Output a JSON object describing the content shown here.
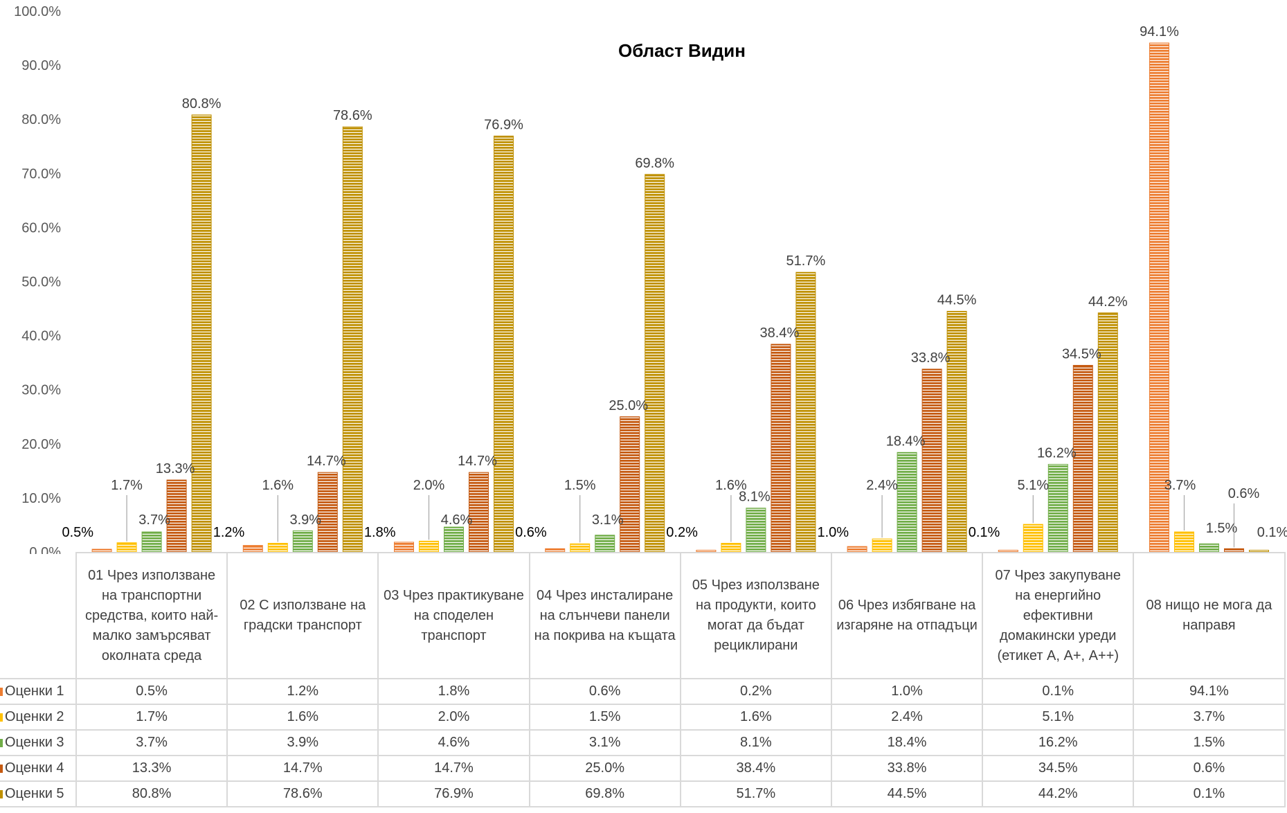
{
  "chart_data": {
    "type": "bar",
    "title": "Област Видин",
    "ylim": [
      0,
      100
    ],
    "y_ticks": [
      "0.0%",
      "10.0%",
      "20.0%",
      "30.0%",
      "40.0%",
      "50.0%",
      "60.0%",
      "70.0%",
      "80.0%",
      "90.0%",
      "100.0%"
    ],
    "y_unit": "%",
    "grid": false,
    "legend": "data-table",
    "categories": [
      "01 Чрез използване на транспортни средства, които най-малко замърсяват околната среда",
      "02 С използване на градски транспорт",
      "03 Чрез практикуване на споделен транспорт",
      "04 Чрез инсталиране на слънчеви панели на покрива на къщата",
      "05 Чрез използване на продукти, които могат да бъдат рециклирани",
      "06 Чрез избягване на изгаряне на отпадъци",
      "07 Чрез закупуване на енергийно ефективни домакински уреди (етикет А, А+, А++)",
      "08 нищо не мога да направя"
    ],
    "series": [
      {
        "name": "Оценки 1",
        "color": "#ED7D31",
        "values": [
          0.5,
          1.2,
          1.8,
          0.6,
          0.2,
          1.0,
          0.1,
          94.1
        ],
        "labels": [
          "0.5%",
          "1.2%",
          "1.8%",
          "0.6%",
          "0.2%",
          "1.0%",
          "0.1%",
          "94.1%"
        ]
      },
      {
        "name": "Оценки 2",
        "color": "#FFC000",
        "values": [
          1.7,
          1.6,
          2.0,
          1.5,
          1.6,
          2.4,
          5.1,
          3.7
        ],
        "labels": [
          "1.7%",
          "1.6%",
          "2.0%",
          "1.5%",
          "1.6%",
          "2.4%",
          "5.1%",
          "3.7%"
        ]
      },
      {
        "name": "Оценки 3",
        "color": "#70AD47",
        "values": [
          3.7,
          3.9,
          4.6,
          3.1,
          8.1,
          18.4,
          16.2,
          1.5
        ],
        "labels": [
          "3.7%",
          "3.9%",
          "4.6%",
          "3.1%",
          "8.1%",
          "18.4%",
          "16.2%",
          "1.5%"
        ]
      },
      {
        "name": "Оценки 4",
        "color": "#C55A11",
        "values": [
          13.3,
          14.7,
          14.7,
          25.0,
          38.4,
          33.8,
          34.5,
          0.6
        ],
        "labels": [
          "13.3%",
          "14.7%",
          "14.7%",
          "25.0%",
          "38.4%",
          "33.8%",
          "34.5%",
          "0.6%"
        ]
      },
      {
        "name": "Оценки 5",
        "color": "#BF9000",
        "values": [
          80.8,
          78.6,
          76.9,
          69.8,
          51.7,
          44.5,
          44.2,
          0.1
        ],
        "labels": [
          "80.8%",
          "78.6%",
          "76.9%",
          "69.8%",
          "51.7%",
          "44.5%",
          "44.2%",
          "0.1%"
        ]
      }
    ]
  }
}
